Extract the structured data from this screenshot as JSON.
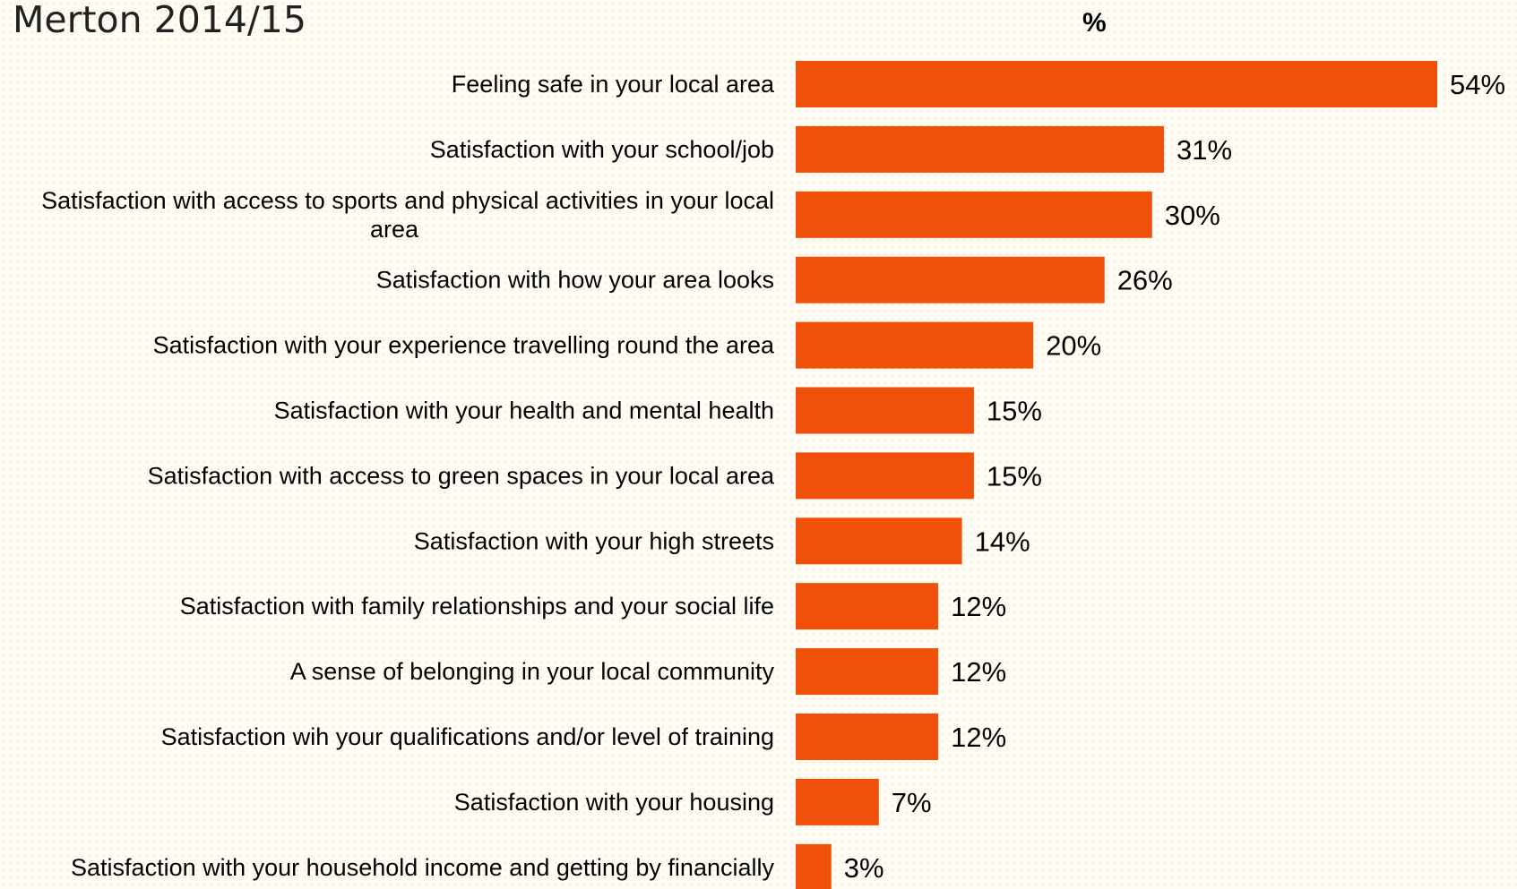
{
  "title": "Merton 2014/15",
  "unit_label": "%",
  "colors": {
    "bar": "#f0500a",
    "background": "#fffdf3",
    "text": "#000000"
  },
  "chart_data": {
    "type": "bar",
    "orientation": "horizontal",
    "title": "Merton 2014/15",
    "unit": "%",
    "grid": false,
    "legend": "none",
    "xlim": [
      0,
      54
    ],
    "categories": [
      [
        "Feeling safe in your local area"
      ],
      [
        "Satisfaction with your school/job"
      ],
      [
        "Satisfaction with access to sports and physical activities in your local",
        "area"
      ],
      [
        "Satisfaction with how your area looks"
      ],
      [
        "Satisfaction with your experience travelling round the area"
      ],
      [
        "Satisfaction with your health and mental health"
      ],
      [
        "Satisfaction with access to green spaces in your local area"
      ],
      [
        "Satisfaction with your high streets"
      ],
      [
        "Satisfaction with family relationships and your social life"
      ],
      [
        "A sense of belonging in your local community"
      ],
      [
        "Satisfaction wih your qualifications and/or level of training"
      ],
      [
        "Satisfaction with your housing"
      ],
      [
        "Satisfaction with your household income and getting by financially"
      ]
    ],
    "values": [
      54,
      31,
      30,
      26,
      20,
      15,
      15,
      14,
      12,
      12,
      12,
      7,
      3
    ],
    "value_labels": [
      "54%",
      "31%",
      "30%",
      "26%",
      "20%",
      "15%",
      "15%",
      "14%",
      "12%",
      "12%",
      "12%",
      "7%",
      "3%"
    ]
  }
}
